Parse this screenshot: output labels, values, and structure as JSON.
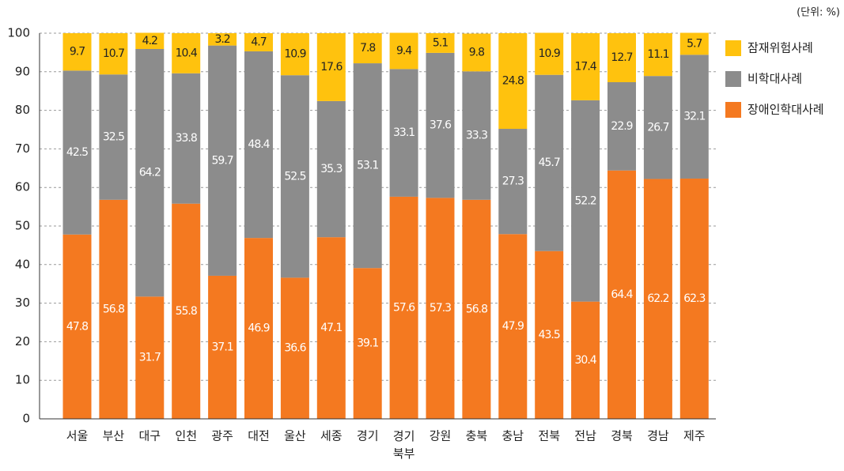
{
  "chart_data": {
    "type": "stacked-bar",
    "unit_note": "(단위: %)",
    "categories": [
      "서울",
      "부산",
      "대구",
      "인천",
      "광주",
      "대전",
      "울산",
      "세종",
      "경기",
      "경기\n북부",
      "강원",
      "충북",
      "충남",
      "전북",
      "전남",
      "경북",
      "경남",
      "제주"
    ],
    "series": [
      {
        "name": "장애인학대사례",
        "color": "#f47920",
        "values": [
          47.8,
          56.8,
          31.7,
          55.8,
          37.1,
          46.9,
          36.6,
          47.1,
          39.1,
          57.6,
          57.3,
          56.8,
          47.9,
          43.5,
          30.4,
          64.4,
          62.2,
          62.3
        ]
      },
      {
        "name": "비학대사례",
        "color": "#8c8c8c",
        "values": [
          42.5,
          32.5,
          64.2,
          33.8,
          59.7,
          48.4,
          52.5,
          35.3,
          53.1,
          33.1,
          37.6,
          33.3,
          27.3,
          45.7,
          52.2,
          22.9,
          26.7,
          32.1
        ]
      },
      {
        "name": "잠재위험사례",
        "color": "#ffc20e",
        "values": [
          9.7,
          10.7,
          4.2,
          10.4,
          3.2,
          4.7,
          10.9,
          17.6,
          7.8,
          9.4,
          5.1,
          9.8,
          24.8,
          10.9,
          17.4,
          12.7,
          11.1,
          5.7
        ]
      }
    ],
    "ylim": [
      0,
      100
    ],
    "yticks": [
      0,
      10,
      20,
      30,
      40,
      50,
      60,
      70,
      80,
      90,
      100
    ],
    "grid": true,
    "legend": "right"
  }
}
